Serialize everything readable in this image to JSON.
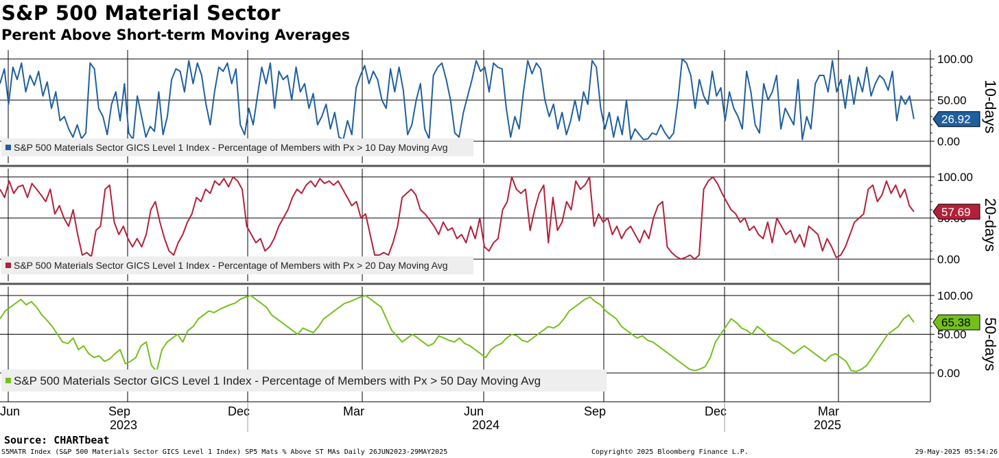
{
  "title": "S&P 500 Material Sector",
  "subtitle": "Perent Above Short-term Moving Averages",
  "source": "Source: CHARTbeat",
  "footer": {
    "left": "S5MATR Index (S&P 500 Materials Sector GICS Level 1 Index) SP5 Mats % Above ST MAs  Daily 26JUN2023-29MAY2025",
    "middle": "Copyright© 2025 Bloomberg Finance L.P.",
    "right": "29-May-2025 05:54:26"
  },
  "chart_data": [
    {
      "type": "line",
      "panel_label": "10-days",
      "legend": "S&P 500 Materials Sector GICS Level 1 Index - Percentage of Members with Px > 10 Day Moving Avg",
      "color": "#1f5f9e",
      "last_value": "26.92",
      "yticks": [
        "100.00",
        "50.00",
        "0.00"
      ],
      "ylim": [
        0,
        100
      ],
      "x_range": [
        "2023-06-26",
        "2025-05-29"
      ],
      "series": [
        {
          "values": [
            70,
            88,
            45,
            90,
            75,
            95,
            60,
            80,
            68,
            85,
            55,
            72,
            40,
            60,
            25,
            30,
            15,
            5,
            20,
            3,
            10,
            95,
            88,
            40,
            30,
            8,
            45,
            60,
            25,
            70,
            10,
            2,
            55,
            30,
            5,
            18,
            12,
            60,
            8,
            30,
            75,
            88,
            85,
            60,
            98,
            70,
            95,
            80,
            45,
            20,
            60,
            90,
            85,
            95,
            70,
            88,
            20,
            8,
            40,
            20,
            55,
            90,
            70,
            95,
            40,
            85,
            75,
            80,
            50,
            90,
            60,
            70,
            40,
            58,
            20,
            30,
            45,
            15,
            35,
            5,
            2,
            25,
            8,
            65,
            80,
            92,
            70,
            85,
            75,
            50,
            40,
            88,
            60,
            90,
            62,
            8,
            20,
            50,
            70,
            15,
            3,
            80,
            90,
            95,
            75,
            50,
            10,
            5,
            35,
            55,
            75,
            98,
            85,
            90,
            60,
            95,
            90,
            88,
            40,
            5,
            30,
            15,
            60,
            98,
            82,
            95,
            88,
            50,
            30,
            45,
            15,
            35,
            8,
            25,
            50,
            25,
            60,
            45,
            98,
            90,
            40,
            15,
            35,
            5,
            30,
            8,
            50,
            2,
            15,
            8,
            2,
            3,
            10,
            8,
            20,
            10,
            3,
            10,
            50,
            100,
            95,
            80,
            40,
            75,
            55,
            45,
            85,
            55,
            65,
            25,
            60,
            40,
            30,
            15,
            85,
            60,
            20,
            10,
            70,
            50,
            60,
            80,
            15,
            40,
            30,
            20,
            75,
            2,
            30,
            15,
            70,
            80,
            80,
            60,
            98,
            60,
            75,
            40,
            80,
            45,
            78,
            60,
            90,
            55,
            70,
            80,
            75,
            62,
            85,
            25,
            55,
            45,
            55,
            26.92
          ]
        }
      ]
    },
    {
      "type": "line",
      "panel_label": "20-days",
      "legend": "S&P 500 Materials Sector GICS Level 1 Index - Percentage of Members with Px > 20 Day Moving Avg",
      "color": "#b3203a",
      "last_value": "57.69",
      "yticks": [
        "100.00",
        "50.00",
        "0.00"
      ],
      "ylim": [
        0,
        100
      ],
      "x_range": [
        "2023-06-26",
        "2025-05-29"
      ],
      "series": [
        {
          "values": [
            85,
            75,
            95,
            80,
            88,
            90,
            75,
            92,
            85,
            78,
            70,
            85,
            55,
            65,
            50,
            40,
            60,
            30,
            5,
            8,
            3,
            35,
            40,
            85,
            90,
            45,
            30,
            40,
            25,
            15,
            25,
            15,
            30,
            60,
            70,
            45,
            25,
            10,
            5,
            20,
            30,
            45,
            55,
            75,
            70,
            85,
            80,
            95,
            90,
            98,
            88,
            100,
            95,
            85,
            40,
            30,
            20,
            25,
            10,
            15,
            25,
            40,
            50,
            60,
            75,
            85,
            80,
            90,
            95,
            88,
            98,
            92,
            95,
            90,
            95,
            85,
            75,
            65,
            70,
            50,
            55,
            30,
            5,
            5,
            8,
            5,
            20,
            40,
            75,
            80,
            85,
            78,
            60,
            55,
            48,
            40,
            30,
            45,
            35,
            38,
            25,
            30,
            20,
            40,
            25,
            50,
            15,
            10,
            20,
            25,
            60,
            70,
            100,
            85,
            80,
            85,
            35,
            60,
            80,
            90,
            20,
            75,
            35,
            45,
            70,
            60,
            95,
            85,
            90,
            100,
            40,
            55,
            45,
            50,
            30,
            40,
            25,
            35,
            40,
            30,
            20,
            35,
            25,
            50,
            65,
            70,
            15,
            8,
            3,
            0,
            2,
            5,
            0,
            5,
            85,
            95,
            100,
            92,
            80,
            70,
            60,
            55,
            45,
            50,
            35,
            40,
            30,
            25,
            45,
            20,
            50,
            40,
            30,
            35,
            20,
            30,
            15,
            40,
            35,
            30,
            10,
            25,
            15,
            2,
            5,
            15,
            30,
            45,
            50,
            55,
            85,
            90,
            70,
            78,
            95,
            80,
            90,
            75,
            85,
            65,
            57.69
          ]
        }
      ]
    },
    {
      "type": "line",
      "panel_label": "50-days",
      "legend": "S&P 500 Materials Sector GICS Level 1 Index - Percentage of Members with Px > 50 Day Moving Avg",
      "color": "#74c01b",
      "last_value": "65.38",
      "yticks": [
        "100.00",
        "50.00",
        "0.00"
      ],
      "ylim": [
        0,
        100
      ],
      "x_range": [
        "2023-06-26",
        "2025-05-29"
      ],
      "series": [
        {
          "values": [
            70,
            80,
            85,
            90,
            95,
            88,
            92,
            85,
            75,
            68,
            60,
            50,
            40,
            38,
            45,
            30,
            35,
            25,
            20,
            22,
            15,
            18,
            25,
            30,
            12,
            15,
            20,
            35,
            40,
            10,
            2,
            30,
            40,
            45,
            50,
            40,
            55,
            60,
            70,
            75,
            80,
            78,
            82,
            85,
            88,
            90,
            95,
            98,
            100,
            95,
            90,
            85,
            75,
            70,
            65,
            60,
            55,
            50,
            58,
            55,
            52,
            60,
            70,
            75,
            80,
            85,
            90,
            92,
            95,
            98,
            100,
            95,
            90,
            85,
            70,
            55,
            48,
            40,
            45,
            50,
            45,
            40,
            35,
            38,
            48,
            45,
            42,
            40,
            45,
            38,
            35,
            30,
            25,
            20,
            30,
            35,
            38,
            45,
            50,
            48,
            42,
            40,
            45,
            50,
            55,
            60,
            58,
            62,
            70,
            80,
            85,
            90,
            95,
            98,
            92,
            88,
            80,
            75,
            70,
            60,
            55,
            50,
            45,
            48,
            42,
            40,
            35,
            30,
            25,
            20,
            15,
            10,
            5,
            3,
            5,
            8,
            20,
            40,
            50,
            60,
            70,
            65,
            58,
            55,
            50,
            60,
            55,
            48,
            42,
            40,
            35,
            30,
            25,
            30,
            35,
            30,
            25,
            20,
            15,
            22,
            25,
            20,
            15,
            3,
            2,
            5,
            10,
            20,
            30,
            40,
            50,
            55,
            60,
            70,
            75,
            65.38
          ]
        }
      ]
    }
  ],
  "x_axis": {
    "month_labels": [
      "Jun",
      "Sep",
      "Dec",
      "Mar",
      "Jun",
      "Sep",
      "Dec",
      "Mar"
    ],
    "year_labels": [
      "2023",
      "2024",
      "2025"
    ]
  }
}
